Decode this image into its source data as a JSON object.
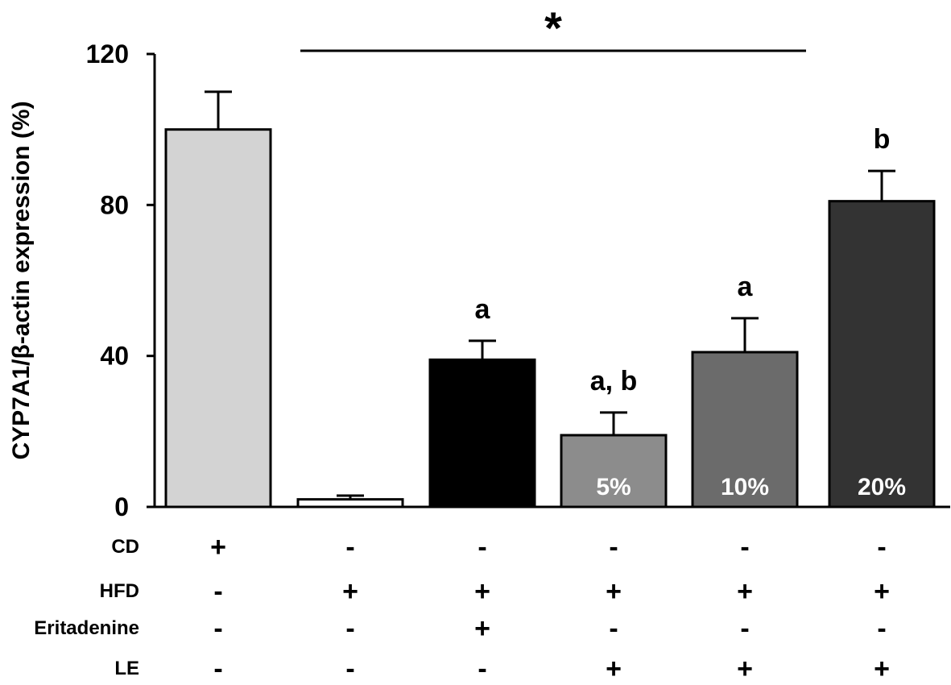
{
  "chart_data": {
    "type": "bar",
    "title": "",
    "xlabel": "",
    "ylabel": "CYP7A1/β-actin expression (%)",
    "ylim": [
      0,
      120
    ],
    "yticks": [
      0,
      40,
      80,
      120
    ],
    "grid": false,
    "significance_bracket": {
      "label": "*",
      "from_bar": 1,
      "to_bar": 4
    },
    "bars": [
      {
        "value": 100,
        "error": 10,
        "color": "#d3d3d3",
        "sig_label": "",
        "inner_label": ""
      },
      {
        "value": 2,
        "error": 1,
        "color": "#ffffff",
        "sig_label": "",
        "inner_label": ""
      },
      {
        "value": 39,
        "error": 5,
        "color": "#000000",
        "sig_label": "a",
        "inner_label": ""
      },
      {
        "value": 19,
        "error": 6,
        "color": "#8c8c8c",
        "sig_label": "a, b",
        "inner_label": "5%"
      },
      {
        "value": 41,
        "error": 9,
        "color": "#6b6b6b",
        "sig_label": "a",
        "inner_label": "10%"
      },
      {
        "value": 81,
        "error": 8,
        "color": "#333333",
        "sig_label": "b",
        "inner_label": "20%"
      }
    ],
    "treatment_table": [
      {
        "label": "CD",
        "signs": [
          "+",
          "-",
          "-",
          "-",
          "-",
          "-"
        ]
      },
      {
        "label": "HFD",
        "signs": [
          "-",
          "+",
          "+",
          "+",
          "+",
          "+"
        ]
      },
      {
        "label": "Eritadenine",
        "signs": [
          "-",
          "-",
          "+",
          "-",
          "-",
          "-"
        ]
      },
      {
        "label": "LE",
        "signs": [
          "-",
          "-",
          "-",
          "+",
          "+",
          "+"
        ]
      }
    ]
  }
}
